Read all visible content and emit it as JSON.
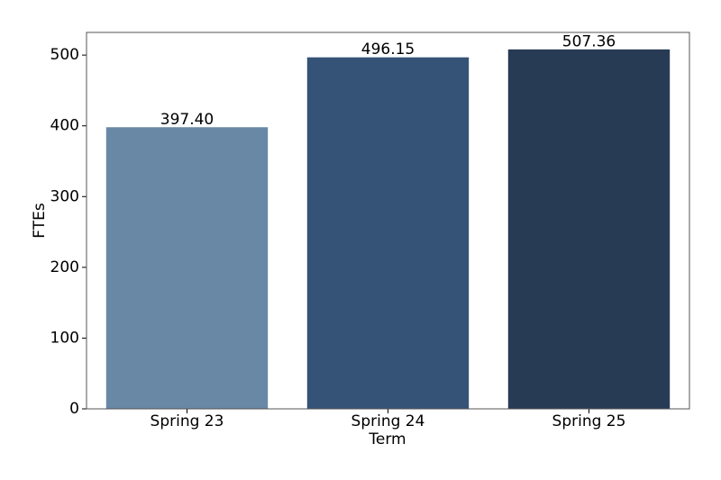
{
  "chart_data": {
    "type": "bar",
    "x_label": "Term",
    "y_label": "FTEs",
    "categories": [
      "Spring 23",
      "Spring 24",
      "Spring 25"
    ],
    "values": [
      397.4,
      496.15,
      507.36
    ],
    "value_labels": [
      "397.40",
      "496.15",
      "507.36"
    ],
    "colors": [
      "#6888a5",
      "#345377",
      "#283b55"
    ],
    "ylim": [
      0,
      532
    ],
    "yticks": [
      0,
      100,
      200,
      300,
      400,
      500
    ],
    "grid": false
  }
}
